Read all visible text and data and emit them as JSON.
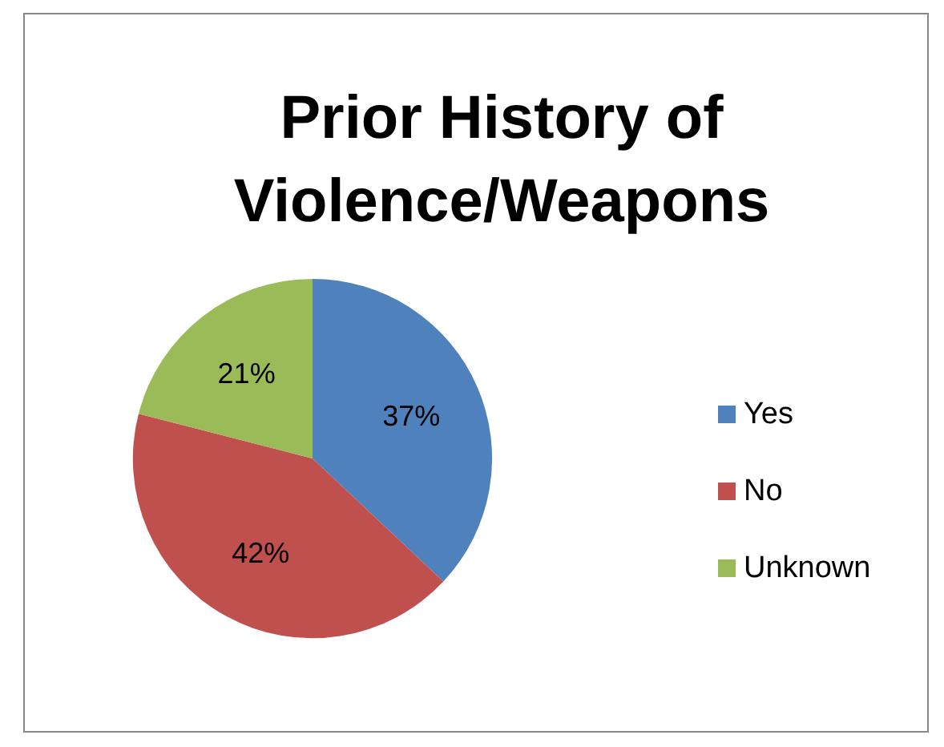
{
  "chart_data": {
    "type": "pie",
    "title": "Prior History of Violence/Weapons",
    "categories": [
      "Yes",
      "No",
      "Unknown"
    ],
    "values": [
      37,
      42,
      21
    ],
    "colors": [
      "#4f81bd",
      "#c0504d",
      "#9bbb59"
    ],
    "value_labels": [
      "37%",
      "42%",
      "21%"
    ],
    "legend": "right"
  }
}
